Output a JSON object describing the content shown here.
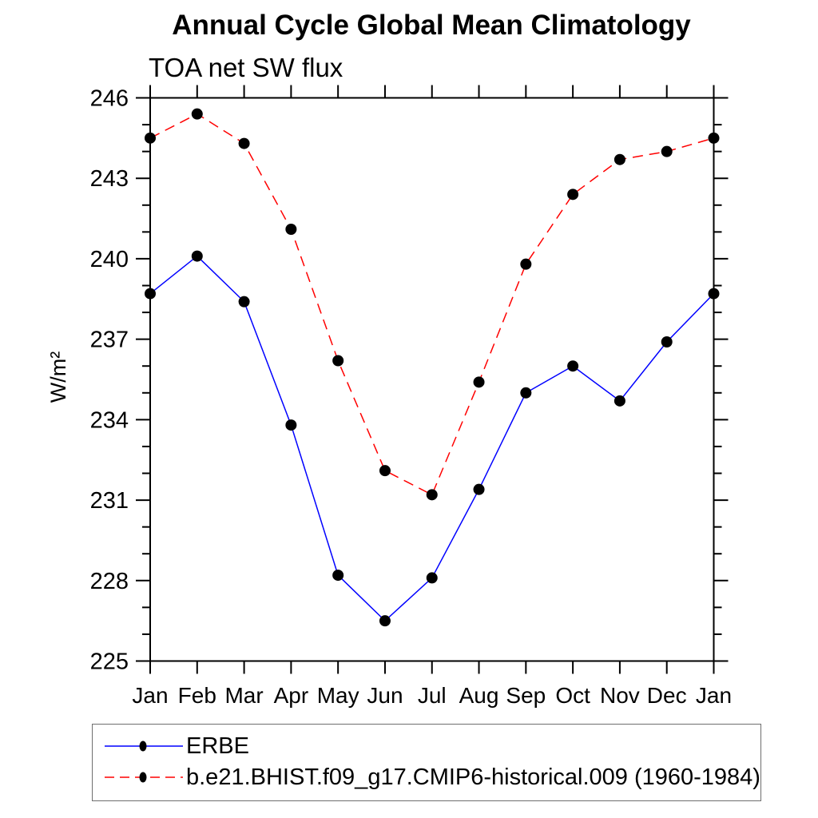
{
  "page": {
    "background": "#ffffff",
    "axis_color": "#000000"
  },
  "chart_data": {
    "type": "line",
    "title": "Annual Cycle Global Mean Climatology",
    "subtitle": "TOA net SW flux",
    "ylabel": "W/m²",
    "xlabel": "",
    "categories": [
      "Jan",
      "Feb",
      "Mar",
      "Apr",
      "May",
      "Jun",
      "Jul",
      "Aug",
      "Sep",
      "Oct",
      "Nov",
      "Dec",
      "Jan"
    ],
    "ylim": [
      225,
      246
    ],
    "ytick_major": [
      225,
      228,
      231,
      234,
      237,
      240,
      243,
      246
    ],
    "ytick_minor_step": 1,
    "grid": false,
    "legend_position": "bottom-left-box",
    "marker": "filled-circle",
    "marker_color": "#000000",
    "series": [
      {
        "name": "ERBE",
        "color": "#0000ff",
        "style": "solid",
        "values": [
          238.7,
          240.1,
          238.4,
          233.8,
          228.2,
          226.5,
          228.1,
          231.4,
          235.0,
          236.0,
          234.7,
          236.9,
          238.7
        ]
      },
      {
        "name": "b.e21.BHIST.f09_g17.CMIP6-historical.009 (1960-1984)",
        "color": "#ff0000",
        "style": "dashed",
        "values": [
          244.5,
          245.4,
          244.3,
          241.1,
          236.2,
          232.1,
          231.2,
          235.4,
          239.8,
          242.4,
          243.7,
          244.0,
          244.5
        ]
      }
    ]
  }
}
